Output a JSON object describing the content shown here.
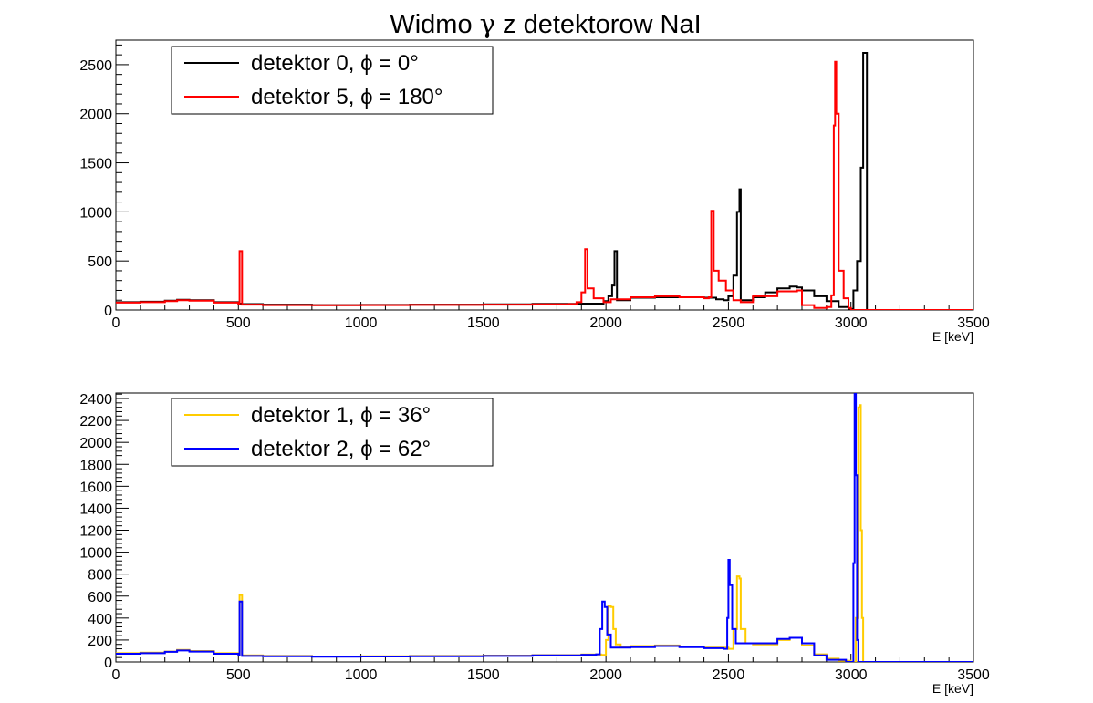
{
  "title_parts": {
    "prefix": "Widmo ",
    "greek": "γ",
    "suffix": " z detektorow NaI"
  },
  "chart_data": [
    {
      "type": "line",
      "title": "Widmo γ z detektorow NaI",
      "xlabel": "E [keV]",
      "ylabel": "",
      "xlim": [
        0,
        3500
      ],
      "ylim": [
        0,
        2750
      ],
      "x_ticks": [
        0,
        500,
        1000,
        1500,
        2000,
        2500,
        3000,
        3500
      ],
      "y_ticks": [
        0,
        500,
        1000,
        1500,
        2000,
        2500
      ],
      "grid": false,
      "legend_position": "top-left",
      "series": [
        {
          "name": "detektor 0, ϕ = 0°",
          "color": "#000000",
          "points": [
            [
              0,
              80
            ],
            [
              100,
              85
            ],
            [
              200,
              95
            ],
            [
              250,
              105
            ],
            [
              300,
              100
            ],
            [
              400,
              80
            ],
            [
              500,
              65
            ],
            [
              510,
              60
            ],
            [
              600,
              55
            ],
            [
              800,
              50
            ],
            [
              1000,
              52
            ],
            [
              1200,
              55
            ],
            [
              1500,
              58
            ],
            [
              1700,
              62
            ],
            [
              1900,
              65
            ],
            [
              1960,
              65
            ],
            [
              1990,
              90
            ],
            [
              2010,
              140
            ],
            [
              2025,
              250
            ],
            [
              2035,
              600
            ],
            [
              2040,
              600
            ],
            [
              2045,
              100
            ],
            [
              2100,
              125
            ],
            [
              2200,
              130
            ],
            [
              2300,
              130
            ],
            [
              2400,
              125
            ],
            [
              2450,
              110
            ],
            [
              2480,
              100
            ],
            [
              2500,
              140
            ],
            [
              2520,
              350
            ],
            [
              2535,
              1000
            ],
            [
              2545,
              1230
            ],
            [
              2550,
              100
            ],
            [
              2600,
              130
            ],
            [
              2650,
              180
            ],
            [
              2700,
              220
            ],
            [
              2750,
              240
            ],
            [
              2780,
              230
            ],
            [
              2800,
              200
            ],
            [
              2850,
              140
            ],
            [
              2900,
              90
            ],
            [
              2950,
              30
            ],
            [
              2990,
              10
            ],
            [
              3010,
              200
            ],
            [
              3025,
              500
            ],
            [
              3040,
              1450
            ],
            [
              3050,
              2620
            ],
            [
              3055,
              2620
            ],
            [
              3060,
              2620
            ],
            [
              3065,
              0
            ],
            [
              3100,
              0
            ],
            [
              3500,
              0
            ]
          ]
        },
        {
          "name": "detektor 5, ϕ = 180°",
          "color": "#ff0000",
          "points": [
            [
              0,
              75
            ],
            [
              100,
              80
            ],
            [
              200,
              90
            ],
            [
              250,
              100
            ],
            [
              300,
              95
            ],
            [
              400,
              75
            ],
            [
              500,
              60
            ],
            [
              505,
              600
            ],
            [
              512,
              600
            ],
            [
              515,
              55
            ],
            [
              600,
              50
            ],
            [
              800,
              48
            ],
            [
              1000,
              50
            ],
            [
              1200,
              52
            ],
            [
              1500,
              55
            ],
            [
              1700,
              58
            ],
            [
              1850,
              60
            ],
            [
              1880,
              80
            ],
            [
              1900,
              180
            ],
            [
              1915,
              620
            ],
            [
              1920,
              620
            ],
            [
              1925,
              220
            ],
            [
              1950,
              120
            ],
            [
              1990,
              80
            ],
            [
              2020,
              110
            ],
            [
              2100,
              130
            ],
            [
              2200,
              140
            ],
            [
              2300,
              130
            ],
            [
              2400,
              120
            ],
            [
              2420,
              130
            ],
            [
              2430,
              1010
            ],
            [
              2435,
              1010
            ],
            [
              2440,
              400
            ],
            [
              2460,
              300
            ],
            [
              2490,
              200
            ],
            [
              2520,
              100
            ],
            [
              2550,
              80
            ],
            [
              2600,
              140
            ],
            [
              2700,
              190
            ],
            [
              2780,
              200
            ],
            [
              2800,
              50
            ],
            [
              2850,
              20
            ],
            [
              2900,
              30
            ],
            [
              2920,
              150
            ],
            [
              2930,
              1880
            ],
            [
              2935,
              2530
            ],
            [
              2940,
              2000
            ],
            [
              2950,
              400
            ],
            [
              2970,
              120
            ],
            [
              2990,
              20
            ],
            [
              3000,
              0
            ],
            [
              3500,
              0
            ]
          ]
        }
      ]
    },
    {
      "type": "line",
      "title": "",
      "xlabel": "E [keV]",
      "ylabel": "",
      "xlim": [
        0,
        3500
      ],
      "ylim": [
        0,
        2450
      ],
      "x_ticks": [
        0,
        500,
        1000,
        1500,
        2000,
        2500,
        3000,
        3500
      ],
      "y_ticks": [
        0,
        200,
        400,
        600,
        800,
        1000,
        1200,
        1400,
        1600,
        1800,
        2000,
        2200,
        2400
      ],
      "grid": false,
      "legend_position": "top-left",
      "series": [
        {
          "name": "detektor 1, ϕ = 36°",
          "color": "#ffcc00",
          "points": [
            [
              0,
              80
            ],
            [
              100,
              85
            ],
            [
              200,
              95
            ],
            [
              250,
              110
            ],
            [
              300,
              100
            ],
            [
              400,
              80
            ],
            [
              500,
              65
            ],
            [
              505,
              610
            ],
            [
              512,
              610
            ],
            [
              515,
              60
            ],
            [
              600,
              55
            ],
            [
              800,
              50
            ],
            [
              1000,
              52
            ],
            [
              1200,
              55
            ],
            [
              1500,
              58
            ],
            [
              1700,
              62
            ],
            [
              1900,
              68
            ],
            [
              1980,
              65
            ],
            [
              2000,
              200
            ],
            [
              2010,
              510
            ],
            [
              2020,
              500
            ],
            [
              2030,
              300
            ],
            [
              2040,
              160
            ],
            [
              2060,
              140
            ],
            [
              2100,
              145
            ],
            [
              2200,
              150
            ],
            [
              2300,
              140
            ],
            [
              2400,
              130
            ],
            [
              2500,
              120
            ],
            [
              2520,
              300
            ],
            [
              2535,
              780
            ],
            [
              2545,
              760
            ],
            [
              2550,
              300
            ],
            [
              2570,
              170
            ],
            [
              2600,
              160
            ],
            [
              2700,
              200
            ],
            [
              2750,
              220
            ],
            [
              2800,
              150
            ],
            [
              2850,
              70
            ],
            [
              2900,
              30
            ],
            [
              2950,
              10
            ],
            [
              3000,
              0
            ],
            [
              3020,
              400
            ],
            [
              3030,
              2320
            ],
            [
              3035,
              2340
            ],
            [
              3040,
              1200
            ],
            [
              3045,
              400
            ],
            [
              3050,
              0
            ],
            [
              3500,
              0
            ]
          ]
        },
        {
          "name": "detektor 2, ϕ = 62°",
          "color": "#0000ff",
          "points": [
            [
              0,
              75
            ],
            [
              100,
              80
            ],
            [
              200,
              92
            ],
            [
              250,
              105
            ],
            [
              300,
              95
            ],
            [
              400,
              75
            ],
            [
              500,
              60
            ],
            [
              505,
              550
            ],
            [
              512,
              550
            ],
            [
              515,
              55
            ],
            [
              600,
              52
            ],
            [
              800,
              48
            ],
            [
              1000,
              50
            ],
            [
              1200,
              52
            ],
            [
              1500,
              55
            ],
            [
              1700,
              60
            ],
            [
              1900,
              66
            ],
            [
              1960,
              70
            ],
            [
              1975,
              300
            ],
            [
              1985,
              550
            ],
            [
              1995,
              500
            ],
            [
              2005,
              250
            ],
            [
              2020,
              130
            ],
            [
              2100,
              135
            ],
            [
              2200,
              145
            ],
            [
              2300,
              135
            ],
            [
              2400,
              125
            ],
            [
              2480,
              120
            ],
            [
              2495,
              400
            ],
            [
              2500,
              930
            ],
            [
              2505,
              700
            ],
            [
              2515,
              300
            ],
            [
              2530,
              170
            ],
            [
              2600,
              170
            ],
            [
              2700,
              210
            ],
            [
              2750,
              220
            ],
            [
              2800,
              170
            ],
            [
              2850,
              60
            ],
            [
              2900,
              20
            ],
            [
              2980,
              0
            ],
            [
              3000,
              0
            ],
            [
              3010,
              900
            ],
            [
              3015,
              2450
            ],
            [
              3020,
              1700
            ],
            [
              3025,
              200
            ],
            [
              3030,
              0
            ],
            [
              3500,
              0
            ]
          ]
        }
      ]
    }
  ]
}
